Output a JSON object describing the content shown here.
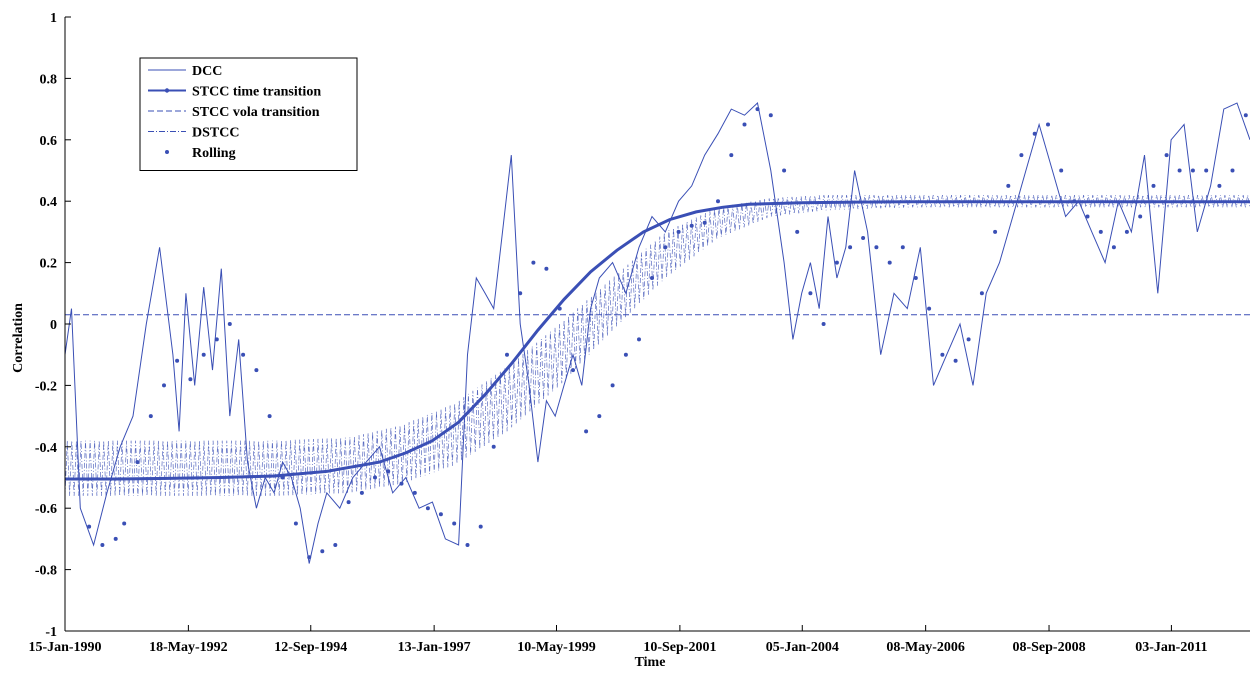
{
  "chart_data": {
    "type": "line",
    "xlabel": "Time",
    "ylabel": "Correlation",
    "ylim": [
      -1,
      1
    ],
    "xlim": [
      "1990-01-15",
      "2012-06-30"
    ],
    "yticks": [
      -1,
      -0.8,
      -0.6,
      -0.4,
      -0.2,
      0,
      0.2,
      0.4,
      0.6,
      0.8,
      1
    ],
    "ytick_labels": [
      "-1",
      "-0.8",
      "-0.6",
      "-0.4",
      "-0.2",
      "0",
      "0.2",
      "0.4",
      "0.6",
      "0.8",
      "1"
    ],
    "xticks": [
      "1990-01-15",
      "1992-05-18",
      "1994-09-12",
      "1997-01-13",
      "1999-05-10",
      "2001-09-10",
      "2004-01-05",
      "2006-05-08",
      "2008-09-08",
      "2011-01-03"
    ],
    "xtick_labels": [
      "15-Jan-1990",
      "18-May-1992",
      "12-Sep-1994",
      "13-Jan-1997",
      "10-May-1999",
      "10-Sep-2001",
      "05-Jan-2004",
      "08-May-2006",
      "08-Sep-2008",
      "03-Jan-2011"
    ],
    "grid": false,
    "legend_position": "top-left",
    "series_color": "#3a4fb5",
    "series": [
      {
        "name": "DCC",
        "style": "thin-line",
        "x": [
          "1990-01-15",
          "1990-03-01",
          "1990-05-01",
          "1990-08-01",
          "1990-11-01",
          "1991-02-01",
          "1991-05-01",
          "1991-08-01",
          "1991-11-01",
          "1992-02-01",
          "1992-03-15",
          "1992-05-01",
          "1992-07-01",
          "1992-09-01",
          "1992-11-01",
          "1993-01-01",
          "1993-03-01",
          "1993-05-01",
          "1993-07-01",
          "1993-09-01",
          "1993-11-01",
          "1994-01-01",
          "1994-03-01",
          "1994-05-01",
          "1994-07-01",
          "1994-09-01",
          "1994-11-01",
          "1995-01-01",
          "1995-04-01",
          "1995-07-01",
          "1995-10-01",
          "1996-01-01",
          "1996-04-01",
          "1996-07-01",
          "1996-10-01",
          "1997-01-01",
          "1997-04-01",
          "1997-07-01",
          "1997-09-01",
          "1997-11-01",
          "1998-01-01",
          "1998-03-01",
          "1998-05-01",
          "1998-07-01",
          "1998-09-01",
          "1998-11-01",
          "1999-01-01",
          "1999-03-01",
          "1999-05-01",
          "1999-07-01",
          "1999-09-01",
          "1999-11-01",
          "2000-01-01",
          "2000-03-01",
          "2000-06-01",
          "2000-09-01",
          "2000-12-01",
          "2001-03-01",
          "2001-06-01",
          "2001-09-01",
          "2001-12-01",
          "2002-03-01",
          "2002-06-01",
          "2002-09-01",
          "2002-12-01",
          "2003-03-01",
          "2003-06-01",
          "2003-09-01",
          "2003-11-01",
          "2004-01-01",
          "2004-03-01",
          "2004-05-01",
          "2004-07-01",
          "2004-09-01",
          "2004-11-01",
          "2005-01-01",
          "2005-04-01",
          "2005-07-01",
          "2005-10-01",
          "2006-01-01",
          "2006-04-01",
          "2006-07-01",
          "2006-10-01",
          "2007-01-01",
          "2007-04-01",
          "2007-07-01",
          "2007-10-01",
          "2008-01-01",
          "2008-04-01",
          "2008-07-01",
          "2008-10-01",
          "2009-01-01",
          "2009-04-01",
          "2009-07-01",
          "2009-10-01",
          "2010-01-01",
          "2010-04-01",
          "2010-07-01",
          "2010-10-01",
          "2011-01-01",
          "2011-04-01",
          "2011-07-01",
          "2011-10-01",
          "2012-01-01",
          "2012-04-01",
          "2012-06-30"
        ],
        "y": [
          -0.1,
          0.05,
          -0.6,
          -0.72,
          -0.55,
          -0.4,
          -0.3,
          0.0,
          0.25,
          -0.1,
          -0.35,
          0.1,
          -0.2,
          0.12,
          -0.15,
          0.18,
          -0.3,
          -0.05,
          -0.45,
          -0.6,
          -0.5,
          -0.55,
          -0.45,
          -0.5,
          -0.6,
          -0.78,
          -0.65,
          -0.55,
          -0.6,
          -0.5,
          -0.45,
          -0.4,
          -0.55,
          -0.5,
          -0.6,
          -0.58,
          -0.7,
          -0.72,
          -0.1,
          0.15,
          0.1,
          0.05,
          0.3,
          0.55,
          0.0,
          -0.2,
          -0.45,
          -0.25,
          -0.3,
          -0.2,
          -0.1,
          -0.2,
          0.05,
          0.15,
          0.2,
          0.1,
          0.25,
          0.35,
          0.3,
          0.4,
          0.45,
          0.55,
          0.62,
          0.7,
          0.68,
          0.72,
          0.5,
          0.2,
          -0.05,
          0.1,
          0.2,
          0.05,
          0.35,
          0.15,
          0.25,
          0.5,
          0.3,
          -0.1,
          0.1,
          0.05,
          0.25,
          -0.2,
          -0.1,
          0.0,
          -0.2,
          0.1,
          0.2,
          0.35,
          0.5,
          0.65,
          0.5,
          0.35,
          0.4,
          0.3,
          0.2,
          0.4,
          0.3,
          0.55,
          0.1,
          0.6,
          0.65,
          0.3,
          0.45,
          0.7,
          0.72,
          0.6
        ]
      },
      {
        "name": "STCC time transition",
        "style": "thick-line",
        "x": [
          "1990-01-15",
          "1991-01-01",
          "1992-01-01",
          "1993-01-01",
          "1994-01-01",
          "1995-01-01",
          "1996-01-01",
          "1996-07-01",
          "1997-01-01",
          "1997-07-01",
          "1998-01-01",
          "1998-07-01",
          "1999-01-01",
          "1999-07-01",
          "2000-01-01",
          "2000-07-01",
          "2001-01-01",
          "2001-07-01",
          "2002-01-01",
          "2002-07-01",
          "2003-01-01",
          "2004-01-01",
          "2005-01-01",
          "2006-01-01",
          "2008-01-01",
          "2010-01-01",
          "2012-06-30"
        ],
        "y": [
          -0.505,
          -0.505,
          -0.503,
          -0.5,
          -0.495,
          -0.48,
          -0.45,
          -0.42,
          -0.38,
          -0.32,
          -0.23,
          -0.13,
          -0.02,
          0.08,
          0.17,
          0.24,
          0.3,
          0.34,
          0.365,
          0.38,
          0.39,
          0.395,
          0.397,
          0.398,
          0.398,
          0.398,
          0.398
        ]
      },
      {
        "name": "STCC vola transition",
        "style": "dashed-line",
        "x": [
          "1990-01-15",
          "2012-06-30"
        ],
        "y": [
          0.03,
          0.03
        ]
      },
      {
        "name": "DSTCC",
        "style": "dash-dot-band",
        "x": [
          "1990-01-15",
          "1992-01-01",
          "1994-01-01",
          "1995-06-01",
          "1996-06-01",
          "1997-06-01",
          "1998-06-01",
          "1999-06-01",
          "2000-06-01",
          "2001-06-01",
          "2002-06-01",
          "2003-06-01",
          "2004-06-01",
          "2006-01-01",
          "2008-01-01",
          "2010-01-01",
          "2012-06-30"
        ],
        "y_low": [
          -0.56,
          -0.56,
          -0.56,
          -0.55,
          -0.52,
          -0.46,
          -0.35,
          -0.2,
          -0.02,
          0.15,
          0.28,
          0.35,
          0.37,
          0.38,
          0.38,
          0.38,
          0.38
        ],
        "y_high": [
          -0.38,
          -0.38,
          -0.38,
          -0.37,
          -0.33,
          -0.26,
          -0.14,
          0.0,
          0.15,
          0.3,
          0.38,
          0.41,
          0.42,
          0.42,
          0.42,
          0.42,
          0.42
        ]
      },
      {
        "name": "Rolling",
        "style": "dots",
        "x": [
          "1990-07-01",
          "1990-10-01",
          "1991-01-01",
          "1991-03-01",
          "1991-06-01",
          "1991-09-01",
          "1991-12-01",
          "1992-03-01",
          "1992-06-01",
          "1992-09-01",
          "1992-12-01",
          "1993-03-01",
          "1993-06-01",
          "1993-09-01",
          "1993-12-01",
          "1994-03-01",
          "1994-06-01",
          "1994-09-01",
          "1994-12-01",
          "1995-03-01",
          "1995-06-01",
          "1995-09-01",
          "1995-12-01",
          "1996-03-01",
          "1996-06-01",
          "1996-09-01",
          "1996-12-01",
          "1997-03-01",
          "1997-06-01",
          "1997-09-01",
          "1997-12-01",
          "1998-03-01",
          "1998-06-01",
          "1998-09-01",
          "1998-12-01",
          "1999-03-01",
          "1999-06-01",
          "1999-09-01",
          "1999-12-01",
          "2000-03-01",
          "2000-06-01",
          "2000-09-01",
          "2000-12-01",
          "2001-03-01",
          "2001-06-01",
          "2001-09-01",
          "2001-12-01",
          "2002-03-01",
          "2002-06-01",
          "2002-09-01",
          "2002-12-01",
          "2003-03-01",
          "2003-06-01",
          "2003-09-01",
          "2003-12-01",
          "2004-03-01",
          "2004-06-01",
          "2004-09-01",
          "2004-12-01",
          "2005-03-01",
          "2005-06-01",
          "2005-09-01",
          "2005-12-01",
          "2006-03-01",
          "2006-06-01",
          "2006-09-01",
          "2006-12-01",
          "2007-03-01",
          "2007-06-01",
          "2007-09-01",
          "2007-12-01",
          "2008-03-01",
          "2008-06-01",
          "2008-09-01",
          "2008-12-01",
          "2009-03-01",
          "2009-06-01",
          "2009-09-01",
          "2009-12-01",
          "2010-03-01",
          "2010-06-01",
          "2010-09-01",
          "2010-12-01",
          "2011-03-01",
          "2011-06-01",
          "2011-09-01",
          "2011-12-01",
          "2012-03-01",
          "2012-06-01"
        ],
        "y": [
          -0.66,
          -0.72,
          -0.7,
          -0.65,
          -0.45,
          -0.3,
          -0.2,
          -0.12,
          -0.18,
          -0.1,
          -0.05,
          0.0,
          -0.1,
          -0.15,
          -0.3,
          -0.5,
          -0.65,
          -0.76,
          -0.74,
          -0.72,
          -0.58,
          -0.55,
          -0.5,
          -0.48,
          -0.52,
          -0.55,
          -0.6,
          -0.62,
          -0.65,
          -0.72,
          -0.66,
          -0.4,
          -0.1,
          0.1,
          0.2,
          0.18,
          0.05,
          -0.15,
          -0.35,
          -0.3,
          -0.2,
          -0.1,
          -0.05,
          0.15,
          0.25,
          0.3,
          0.32,
          0.33,
          0.4,
          0.55,
          0.65,
          0.7,
          0.68,
          0.5,
          0.3,
          0.1,
          0.0,
          0.2,
          0.25,
          0.28,
          0.25,
          0.2,
          0.25,
          0.15,
          0.05,
          -0.1,
          -0.12,
          -0.05,
          0.1,
          0.3,
          0.45,
          0.55,
          0.62,
          0.65,
          0.5,
          0.4,
          0.35,
          0.3,
          0.25,
          0.3,
          0.35,
          0.45,
          0.55,
          0.5,
          0.5,
          0.5,
          0.45,
          0.5,
          0.68
        ]
      }
    ]
  }
}
